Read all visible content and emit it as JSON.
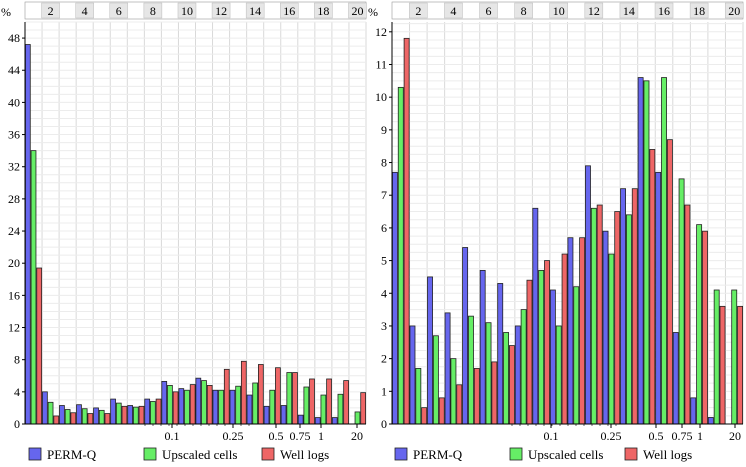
{
  "chart_data": {
    "type": "bar",
    "bin_count": 20,
    "legend": [
      {
        "name": "PERM-Q",
        "color": "#6666ee"
      },
      {
        "name": "Upscaled cells",
        "color": "#66ee66"
      },
      {
        "name": "Well logs",
        "color": "#ee6666"
      }
    ],
    "top_ticks": [
      "2",
      "4",
      "6",
      "8",
      "10",
      "12",
      "14",
      "16",
      "18",
      "20"
    ],
    "bottom_ticks": [
      "0.1",
      "0.25",
      "0.5",
      "0.75",
      "1",
      "20"
    ],
    "panels": [
      {
        "y_unit": "%",
        "ylim": [
          0,
          50
        ],
        "yticks": [
          "0",
          "4",
          "8",
          "12",
          "16",
          "20",
          "24",
          "28",
          "32",
          "36",
          "40",
          "44",
          "48"
        ],
        "series": [
          {
            "name": "PERM-Q",
            "values": [
              47.2,
              4.0,
              2.3,
              2.4,
              2.0,
              3.1,
              2.3,
              3.1,
              5.3,
              4.4,
              5.7,
              4.2,
              4.2,
              3.6,
              2.2,
              2.3,
              1.1,
              0.8,
              0.8,
              0.0
            ]
          },
          {
            "name": "Upscaled cells",
            "values": [
              34.0,
              2.7,
              1.8,
              1.9,
              1.7,
              2.6,
              2.1,
              2.8,
              4.8,
              4.2,
              5.4,
              4.2,
              4.7,
              5.1,
              4.2,
              6.4,
              4.6,
              3.6,
              3.7,
              1.5
            ]
          },
          {
            "name": "Well logs",
            "values": [
              19.4,
              1.0,
              1.4,
              1.3,
              1.3,
              2.2,
              2.2,
              3.1,
              4.0,
              4.9,
              4.8,
              6.8,
              7.8,
              7.4,
              7.0,
              6.4,
              5.6,
              5.6,
              5.4,
              3.9
            ]
          }
        ]
      },
      {
        "y_unit": "%",
        "ylim": [
          0,
          12.3
        ],
        "yticks": [
          "0",
          "1",
          "2",
          "3",
          "4",
          "5",
          "6",
          "7",
          "8",
          "9",
          "10",
          "11",
          "12"
        ],
        "series": [
          {
            "name": "PERM-Q",
            "values": [
              7.7,
              3.0,
              4.5,
              3.4,
              5.4,
              4.7,
              4.3,
              3.0,
              6.6,
              4.1,
              5.7,
              7.9,
              5.9,
              7.2,
              10.6,
              7.7,
              2.8,
              0.8,
              0.2,
              0.0
            ]
          },
          {
            "name": "Upscaled cells",
            "values": [
              10.3,
              1.7,
              2.7,
              2.0,
              3.3,
              3.1,
              2.8,
              3.5,
              4.7,
              3.0,
              4.2,
              6.6,
              5.2,
              6.4,
              10.5,
              10.6,
              7.5,
              6.1,
              4.1,
              4.1
            ]
          },
          {
            "name": "Well logs",
            "values": [
              11.8,
              0.5,
              0.8,
              1.2,
              1.7,
              1.9,
              2.4,
              4.4,
              5.0,
              5.2,
              5.7,
              6.7,
              6.5,
              7.2,
              8.4,
              8.7,
              6.7,
              5.9,
              3.6,
              3.6
            ]
          }
        ]
      }
    ]
  }
}
